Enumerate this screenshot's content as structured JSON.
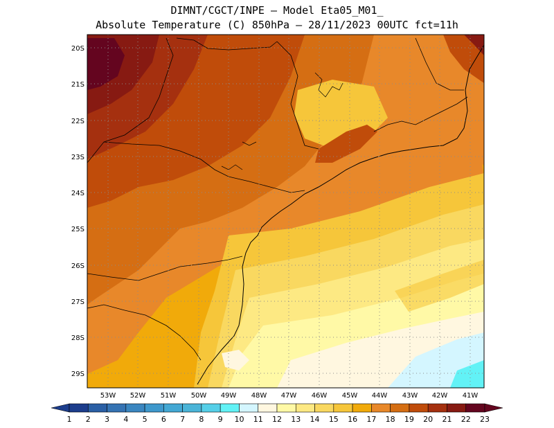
{
  "header": {
    "line1": "DIMNT/CGCT/INPE —  Model Eta05_M01_",
    "line2": "Absolute Temperature (C) 850hPa —  28/11/2023 00UTC fct=11h"
  },
  "map": {
    "lat_labels": [
      "20S",
      "21S",
      "22S",
      "23S",
      "24S",
      "25S",
      "26S",
      "27S",
      "28S",
      "29S"
    ],
    "lon_labels": [
      "53W",
      "52W",
      "51W",
      "50W",
      "49W",
      "48W",
      "47W",
      "46W",
      "45W",
      "44W",
      "43W",
      "42W",
      "41W"
    ],
    "temperature_palette": [
      {
        "level": "7-8",
        "color": "#4ab4d8"
      },
      {
        "level": "9-10",
        "color": "#62f2f6"
      },
      {
        "level": "10-11",
        "color": "#d4f6ff"
      },
      {
        "level": "11-12",
        "color": "#fff7e0"
      },
      {
        "level": "12-13",
        "color": "#fff9a6"
      },
      {
        "level": "13-14",
        "color": "#fde983"
      },
      {
        "level": "14-15",
        "color": "#f9d860"
      },
      {
        "level": "15-16",
        "color": "#f6c63a"
      },
      {
        "level": "16-17",
        "color": "#f1aa0a"
      },
      {
        "level": "17-18",
        "color": "#e8882a"
      },
      {
        "level": "18-19",
        "color": "#d56e13"
      },
      {
        "level": "19-20",
        "color": "#c04c0a"
      },
      {
        "level": "20-21",
        "color": "#a5300f"
      },
      {
        "level": "21-22",
        "color": "#871a12"
      },
      {
        "level": "22-23",
        "color": "#64051f"
      }
    ]
  },
  "colorbar": {
    "labels": [
      "1",
      "2",
      "3",
      "4",
      "5",
      "6",
      "7",
      "8",
      "9",
      "10",
      "11",
      "12",
      "13",
      "14",
      "15",
      "16",
      "17",
      "18",
      "19",
      "20",
      "21",
      "22",
      "23"
    ],
    "colors": [
      "#1c3d8c",
      "#2a5fa5",
      "#3573b3",
      "#3a86c0",
      "#3e98cc",
      "#43a8d4",
      "#4ab4d8",
      "#55cfe8",
      "#62f2f6",
      "#d4f6ff",
      "#fff7e0",
      "#fff9a6",
      "#fde983",
      "#f9d860",
      "#f6c63a",
      "#f1aa0a",
      "#e8882a",
      "#d56e13",
      "#c04c0a",
      "#a5300f",
      "#871a12",
      "#64051f"
    ]
  }
}
